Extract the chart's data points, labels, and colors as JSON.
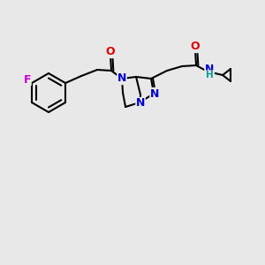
{
  "background_color": "#e8e8e8",
  "bond_color": "#000000",
  "bond_width": 1.5,
  "atom_colors": {
    "N": "#0000cc",
    "O": "#dd0000",
    "F": "#cc00cc",
    "H": "#009999",
    "C": "#000000"
  },
  "figsize": [
    3.0,
    3.0
  ],
  "dpi": 100
}
